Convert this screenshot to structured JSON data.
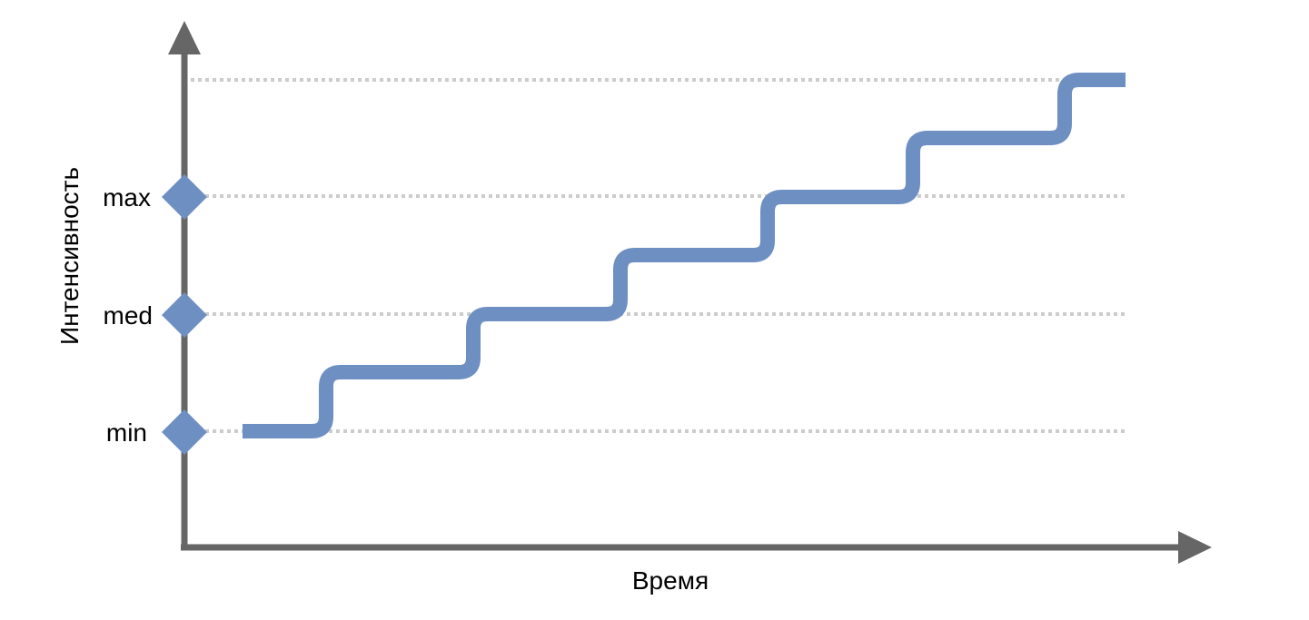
{
  "x_axis": {
    "label": "Время"
  },
  "y_axis": {
    "label": "Интенсивность",
    "levels": [
      "min",
      "med",
      "max"
    ]
  },
  "staircase": {
    "step_count": 7,
    "color": "#6e8fc2"
  },
  "colors": {
    "axis": "#666666",
    "gridline": "#cccccc",
    "marker": "#6e8fc2",
    "line": "#6e8fc2"
  }
}
